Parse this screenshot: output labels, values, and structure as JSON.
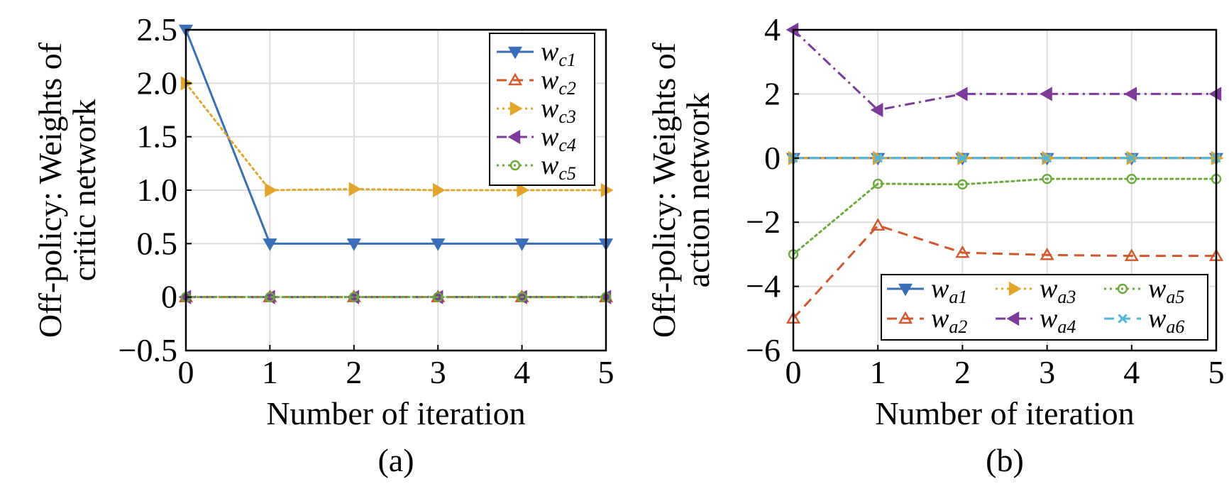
{
  "chart_data": [
    {
      "type": "line",
      "panel_label": "(a)",
      "xlabel": "Number of iteration",
      "ylabel_lines": [
        "Off-policy: Weights of",
        "critic network"
      ],
      "x": [
        0,
        1,
        2,
        3,
        4,
        5
      ],
      "xlim": [
        0,
        5
      ],
      "ylim": [
        -0.5,
        2.5
      ],
      "xticks": [
        0,
        1,
        2,
        3,
        4,
        5
      ],
      "xtick_labels": [
        "0",
        "1",
        "2",
        "3",
        "4",
        "5"
      ],
      "yticks": [
        -0.5,
        0,
        0.5,
        1.0,
        1.5,
        2.0,
        2.5
      ],
      "ytick_labels": [
        "−0.5",
        "0",
        "0.5",
        "1.0",
        "1.5",
        "2.0",
        "2.5"
      ],
      "grid": true,
      "legend_position": "top-right",
      "legend_columns": 1,
      "series": [
        {
          "name": "w",
          "sub": "c1",
          "color": "#3a6fb7",
          "dash": "solid",
          "marker": "tri-down",
          "values": [
            2.5,
            0.5,
            0.5,
            0.5,
            0.5,
            0.5
          ]
        },
        {
          "name": "w",
          "sub": "c2",
          "color": "#d2572d",
          "dash": "dashed",
          "marker": "tri-up",
          "values": [
            0,
            0,
            0,
            0,
            0,
            0
          ]
        },
        {
          "name": "w",
          "sub": "c3",
          "color": "#e3a42c",
          "dash": "dotted",
          "marker": "tri-right",
          "values": [
            2.0,
            1.0,
            1.01,
            1.0,
            1.0,
            1.0
          ]
        },
        {
          "name": "w",
          "sub": "c4",
          "color": "#7e3a9a",
          "dash": "dashdot",
          "marker": "tri-left",
          "values": [
            0,
            0,
            0,
            0,
            0,
            0
          ]
        },
        {
          "name": "w",
          "sub": "c5",
          "color": "#6aaa3a",
          "dash": "dotted",
          "marker": "circle",
          "values": [
            0,
            0,
            0,
            0,
            0,
            0
          ]
        }
      ]
    },
    {
      "type": "line",
      "panel_label": "(b)",
      "xlabel": "Number of iteration",
      "ylabel_lines": [
        "Off-policy: Weights of",
        "action network"
      ],
      "x": [
        0,
        1,
        2,
        3,
        4,
        5
      ],
      "xlim": [
        0,
        5
      ],
      "ylim": [
        -6,
        4
      ],
      "xticks": [
        0,
        1,
        2,
        3,
        4,
        5
      ],
      "xtick_labels": [
        "0",
        "1",
        "2",
        "3",
        "4",
        "5"
      ],
      "yticks": [
        -6,
        -4,
        -2,
        0,
        2,
        4
      ],
      "ytick_labels": [
        "−6",
        "−4",
        "−2",
        "0",
        "2",
        "4"
      ],
      "grid": true,
      "legend_position": "bottom-right",
      "legend_columns": 3,
      "series": [
        {
          "name": "w",
          "sub": "a1",
          "color": "#3a6fb7",
          "dash": "solid",
          "marker": "tri-down",
          "values": [
            0,
            0,
            0,
            0,
            0,
            0
          ]
        },
        {
          "name": "w",
          "sub": "a2",
          "color": "#d2572d",
          "dash": "dashed",
          "marker": "tri-up",
          "values": [
            -5.0,
            -2.1,
            -2.95,
            -3.02,
            -3.05,
            -3.05
          ]
        },
        {
          "name": "w",
          "sub": "a3",
          "color": "#e3a42c",
          "dash": "dotted",
          "marker": "tri-right",
          "values": [
            0,
            0,
            0,
            0,
            0,
            0
          ]
        },
        {
          "name": "w",
          "sub": "a4",
          "color": "#7e3a9a",
          "dash": "dashdot",
          "marker": "tri-left",
          "values": [
            4.0,
            1.5,
            2.0,
            2.0,
            2.0,
            2.0
          ]
        },
        {
          "name": "w",
          "sub": "a5",
          "color": "#6aaa3a",
          "dash": "dotted",
          "marker": "circle",
          "values": [
            -3.0,
            -0.8,
            -0.82,
            -0.65,
            -0.65,
            -0.65
          ]
        },
        {
          "name": "w",
          "sub": "a6",
          "color": "#52b7d6",
          "dash": "dashed",
          "marker": "x",
          "values": [
            0,
            0,
            0,
            0,
            0,
            0
          ]
        }
      ]
    }
  ]
}
